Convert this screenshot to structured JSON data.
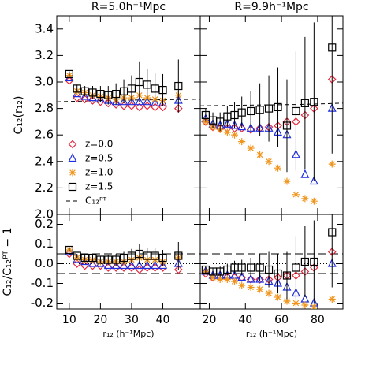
{
  "chart_data": [
    {
      "type": "scatter",
      "title": "R=5.0h⁻¹Mpc",
      "y_label": "C₁₂(r₁₂)",
      "xlim": [
        6,
        52
      ],
      "ylim": [
        2.0,
        3.5
      ],
      "yticks": [
        {
          "value": 2,
          "label": "2.0"
        },
        2.2,
        2.4,
        2.6,
        2.8,
        {
          "value": 3,
          "label": "3.0"
        },
        3.2,
        3.4
      ],
      "x": [
        10,
        12.5,
        15,
        17.5,
        20,
        22.5,
        25,
        27.5,
        30,
        32.5,
        35,
        37.5,
        40,
        45
      ],
      "series": [
        {
          "name": "z=0.0",
          "color": "#e8283c",
          "marker": "diamond",
          "values": [
            3.01,
            2.88,
            2.87,
            2.86,
            2.85,
            2.84,
            2.83,
            2.82,
            2.82,
            2.81,
            2.82,
            2.81,
            2.81,
            2.8
          ]
        },
        {
          "name": "z=0.5",
          "color": "#1f2ee0",
          "marker": "triangle",
          "values": [
            3.03,
            2.91,
            2.89,
            2.88,
            2.87,
            2.86,
            2.85,
            2.85,
            2.85,
            2.85,
            2.85,
            2.84,
            2.84,
            2.86
          ]
        },
        {
          "name": "z=1.0",
          "color": "#f0961e",
          "marker": "asterisk",
          "values": [
            3.05,
            2.93,
            2.92,
            2.9,
            2.89,
            2.88,
            2.87,
            2.88,
            2.88,
            2.9,
            2.88,
            2.87,
            2.86,
            2.9
          ]
        },
        {
          "name": "z=1.5",
          "color": "#000000",
          "marker": "square",
          "values": [
            3.06,
            2.95,
            2.93,
            2.92,
            2.91,
            2.9,
            2.91,
            2.93,
            2.95,
            3.0,
            2.98,
            2.95,
            2.94,
            2.97
          ],
          "errors": [
            0.02,
            0.03,
            0.04,
            0.05,
            0.06,
            0.07,
            0.08,
            0.09,
            0.1,
            0.15,
            0.12,
            0.12,
            0.12,
            0.2
          ]
        }
      ],
      "curve": {
        "name": "C₁₂ᴾᵀ",
        "color": "#000000",
        "x": [
          6,
          20,
          35,
          52
        ],
        "values": [
          2.85,
          2.86,
          2.865,
          2.87
        ]
      },
      "legend": "lower left"
    },
    {
      "type": "scatter",
      "title": "R=9.9h⁻¹Mpc",
      "xlim": [
        15,
        94
      ],
      "ylim": [
        2.0,
        3.5
      ],
      "x": [
        18,
        22,
        26,
        30,
        34,
        38,
        43,
        48,
        53,
        58,
        63,
        68,
        73,
        78,
        88
      ],
      "series": [
        {
          "color": "#e8283c",
          "marker": "diamond",
          "values": [
            2.7,
            2.66,
            2.65,
            2.65,
            2.65,
            2.65,
            2.64,
            2.65,
            2.66,
            2.67,
            2.7,
            2.7,
            2.75,
            2.8,
            3.02
          ]
        },
        {
          "color": "#1f2ee0",
          "marker": "triangle",
          "values": [
            2.72,
            2.68,
            2.67,
            2.68,
            2.67,
            2.66,
            2.65,
            2.65,
            2.65,
            2.62,
            2.6,
            2.45,
            2.3,
            2.25,
            2.8
          ]
        },
        {
          "color": "#f0961e",
          "marker": "asterisk",
          "values": [
            2.7,
            2.66,
            2.64,
            2.62,
            2.6,
            2.55,
            2.5,
            2.45,
            2.4,
            2.35,
            2.25,
            2.15,
            2.12,
            2.1,
            2.38
          ]
        },
        {
          "color": "#000000",
          "marker": "square",
          "values": [
            2.75,
            2.71,
            2.7,
            2.74,
            2.75,
            2.77,
            2.78,
            2.79,
            2.8,
            2.81,
            2.67,
            2.78,
            2.84,
            2.85,
            3.26
          ],
          "errors": [
            0.05,
            0.06,
            0.07,
            0.08,
            0.1,
            0.12,
            0.15,
            0.2,
            0.25,
            0.3,
            0.35,
            0.45,
            0.5,
            0.6,
            0.8
          ]
        }
      ],
      "curve": {
        "color": "#000000",
        "x": [
          15,
          40,
          70,
          94
        ],
        "values": [
          2.82,
          2.825,
          2.83,
          2.84
        ]
      }
    },
    {
      "type": "scatter",
      "x_label": "r₁₂ (h⁻¹Mpc)",
      "y_label": "C₁₂/C₁₂ᴾᵀ − 1",
      "xlim": [
        6,
        52
      ],
      "ylim": [
        -0.23,
        0.25
      ],
      "xticks": [
        10,
        20,
        30,
        40
      ],
      "yticks": [
        -0.2,
        -0.1,
        {
          "value": 0,
          "label": "0.0"
        },
        0.1,
        0.2
      ],
      "hlines": [
        {
          "value": 0.05,
          "style": "dashed"
        },
        {
          "value": 0,
          "style": "dotted"
        },
        {
          "value": -0.05,
          "style": "dashed"
        }
      ],
      "x": [
        10,
        12.5,
        15,
        17.5,
        20,
        22.5,
        25,
        27.5,
        30,
        32.5,
        35,
        37.5,
        40,
        45
      ],
      "series": [
        {
          "color": "#e8283c",
          "marker": "diamond",
          "values": [
            0.05,
            0.0,
            -0.01,
            -0.01,
            -0.01,
            -0.02,
            -0.02,
            -0.02,
            -0.02,
            -0.03,
            -0.02,
            -0.02,
            -0.02,
            -0.03
          ]
        },
        {
          "color": "#1f2ee0",
          "marker": "triangle",
          "values": [
            0.06,
            0.02,
            0.01,
            0.0,
            0.0,
            -0.01,
            -0.01,
            -0.01,
            -0.01,
            -0.01,
            -0.01,
            -0.01,
            -0.01,
            0.0
          ]
        },
        {
          "color": "#f0961e",
          "marker": "asterisk",
          "values": [
            0.07,
            0.03,
            0.02,
            0.02,
            0.01,
            0.01,
            0.01,
            0.01,
            0.02,
            0.03,
            0.02,
            0.02,
            0.01,
            0.03
          ]
        },
        {
          "color": "#000000",
          "marker": "square",
          "values": [
            0.07,
            0.04,
            0.03,
            0.03,
            0.02,
            0.02,
            0.02,
            0.03,
            0.04,
            0.05,
            0.04,
            0.04,
            0.03,
            0.04
          ],
          "errors": [
            0.01,
            0.01,
            0.015,
            0.02,
            0.02,
            0.025,
            0.03,
            0.03,
            0.035,
            0.05,
            0.04,
            0.04,
            0.04,
            0.07
          ]
        }
      ]
    },
    {
      "type": "scatter",
      "x_label": "r₁₂ (h⁻¹Mpc)",
      "xlim": [
        15,
        94
      ],
      "ylim": [
        -0.23,
        0.25
      ],
      "xticks": [
        20,
        40,
        60,
        80
      ],
      "hlines": [
        {
          "value": 0.05,
          "style": "dashed"
        },
        {
          "value": 0,
          "style": "dotted"
        },
        {
          "value": -0.05,
          "style": "dashed"
        }
      ],
      "x": [
        18,
        22,
        26,
        30,
        34,
        38,
        43,
        48,
        53,
        58,
        63,
        68,
        73,
        78,
        88
      ],
      "series": [
        {
          "color": "#e8283c",
          "marker": "diamond",
          "values": [
            -0.05,
            -0.07,
            -0.07,
            -0.07,
            -0.07,
            -0.07,
            -0.08,
            -0.08,
            -0.08,
            -0.07,
            -0.06,
            -0.06,
            -0.04,
            -0.02,
            0.06
          ]
        },
        {
          "color": "#1f2ee0",
          "marker": "triangle",
          "values": [
            -0.04,
            -0.06,
            -0.06,
            -0.06,
            -0.06,
            -0.07,
            -0.08,
            -0.08,
            -0.09,
            -0.1,
            -0.12,
            -0.15,
            -0.18,
            -0.2,
            0.0
          ]
        },
        {
          "color": "#f0961e",
          "marker": "asterisk",
          "values": [
            -0.04,
            -0.07,
            -0.08,
            -0.08,
            -0.09,
            -0.11,
            -0.12,
            -0.13,
            -0.15,
            -0.17,
            -0.19,
            -0.2,
            -0.21,
            -0.22,
            -0.18
          ]
        },
        {
          "color": "#000000",
          "marker": "square",
          "values": [
            -0.03,
            -0.04,
            -0.04,
            -0.03,
            -0.02,
            -0.02,
            -0.02,
            -0.02,
            -0.03,
            -0.05,
            -0.06,
            -0.02,
            0.01,
            0.01,
            0.16
          ],
          "errors": [
            0.02,
            0.02,
            0.025,
            0.03,
            0.035,
            0.04,
            0.05,
            0.07,
            0.09,
            0.1,
            0.12,
            0.16,
            0.18,
            0.21,
            0.28
          ]
        }
      ]
    }
  ]
}
